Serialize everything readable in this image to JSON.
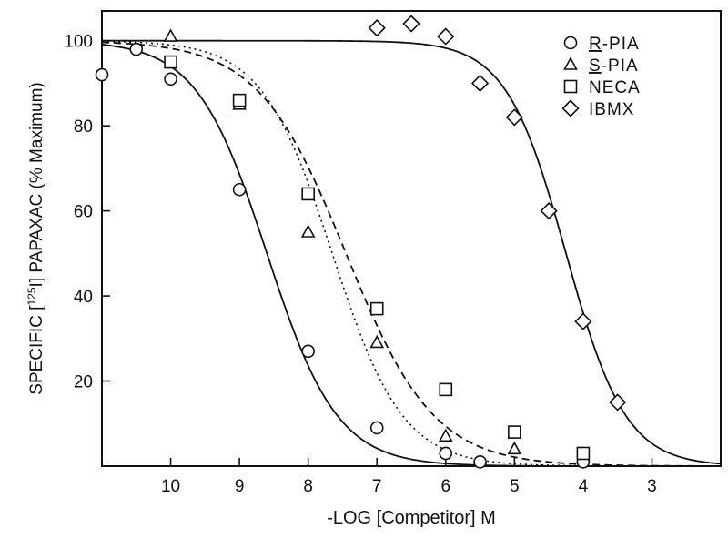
{
  "chart_data": {
    "type": "scatter",
    "xlabel": "-LOG [Competitor] M",
    "ylabel": "SPECIFIC [125I] PAPAXAC (% Maximum)",
    "ylabel_parts": {
      "pre": "SPECIFIC [",
      "sup": "125",
      "iso": "I",
      "post": "] PAPAXAC (% Maximum)"
    },
    "x_reversed": true,
    "xlim": [
      11,
      2
    ],
    "ylim": [
      0,
      107
    ],
    "x_ticks": [
      10,
      9,
      8,
      7,
      6,
      5,
      4,
      3
    ],
    "y_ticks": [
      20,
      40,
      60,
      80,
      100
    ],
    "grid": false,
    "legend_position": "top-right",
    "series": [
      {
        "name": "R-PIA",
        "name_underlined": "R",
        "name_rest": "-PIA",
        "marker": "circle",
        "line": "solid",
        "fit": {
          "top": 100,
          "bottom": 0,
          "pIC50": 8.6,
          "slope": 0.85
        },
        "points": [
          [
            11,
            92
          ],
          [
            10.5,
            98
          ],
          [
            10,
            91
          ],
          [
            9,
            65
          ],
          [
            8,
            27
          ],
          [
            7,
            9
          ],
          [
            6,
            3
          ],
          [
            5.5,
            1
          ],
          [
            4,
            1
          ]
        ]
      },
      {
        "name": "S-PIA",
        "name_underlined": "S",
        "name_rest": "-PIA",
        "marker": "triangle",
        "line": "dotted",
        "fit": {
          "top": 100,
          "bottom": 0,
          "pIC50": 7.65,
          "slope": 0.85
        },
        "points": [
          [
            10,
            101
          ],
          [
            9,
            85
          ],
          [
            8,
            55
          ],
          [
            7,
            29
          ],
          [
            6,
            7
          ],
          [
            5,
            4
          ]
        ]
      },
      {
        "name": "NECA",
        "name_underlined": "",
        "name_rest": "NECA",
        "marker": "square",
        "line": "dashed",
        "fit": {
          "top": 100,
          "bottom": 0,
          "pIC50": 7.45,
          "slope": 0.68
        },
        "points": [
          [
            10,
            95
          ],
          [
            9,
            86
          ],
          [
            8,
            64
          ],
          [
            7,
            37
          ],
          [
            6,
            18
          ],
          [
            5,
            8
          ],
          [
            4,
            3
          ]
        ]
      },
      {
        "name": "IBMX",
        "name_underlined": "",
        "name_rest": "IBMX",
        "marker": "diamond",
        "line": "solid",
        "fit": {
          "top": 100,
          "bottom": 0,
          "pIC50": 4.25,
          "slope": 1.0
        },
        "points": [
          [
            7,
            103
          ],
          [
            6.5,
            104
          ],
          [
            6,
            101
          ],
          [
            5.5,
            90
          ],
          [
            5,
            82
          ],
          [
            4.5,
            60
          ],
          [
            4,
            34
          ],
          [
            3.5,
            15
          ]
        ]
      }
    ]
  }
}
